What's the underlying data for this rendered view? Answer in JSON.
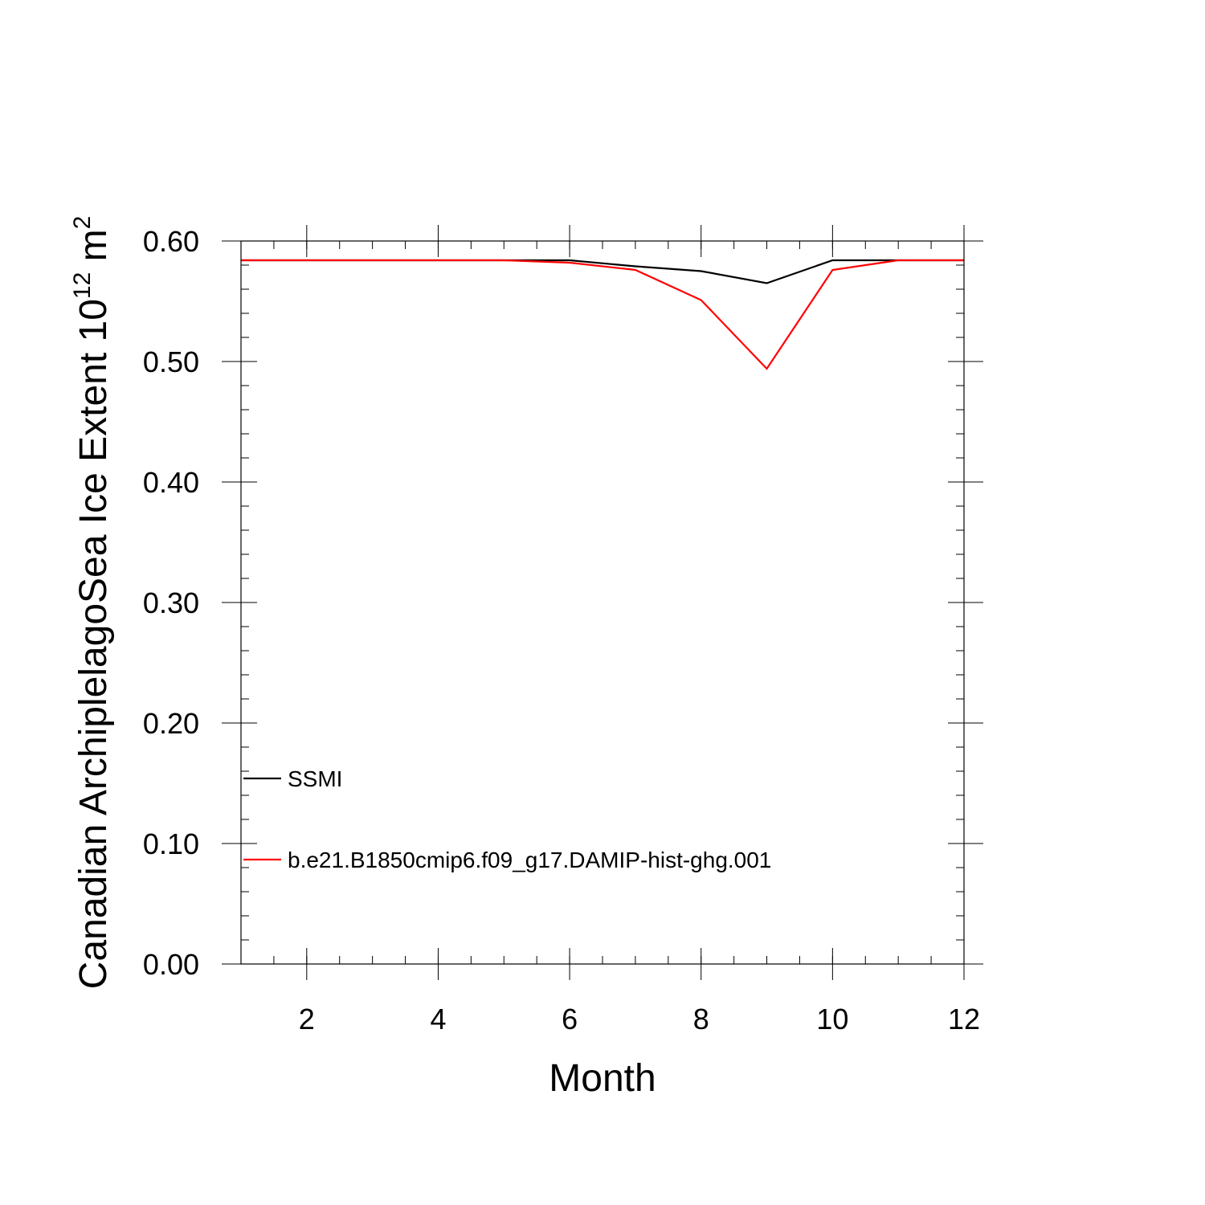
{
  "chart_data": {
    "type": "line",
    "title": "",
    "xlabel": "Month",
    "ylabel": "Canadian ArchiplelagoSea Ice Extent 10",
    "ylabel_exponent": "12",
    "ylabel_unit": " m",
    "ylabel_unit_exponent": "2",
    "xlim": [
      1,
      12
    ],
    "ylim": [
      0.0,
      0.6
    ],
    "x_ticks": [
      2,
      4,
      6,
      8,
      10,
      12
    ],
    "x_tick_labels": [
      "2",
      "4",
      "6",
      "8",
      "10",
      "12"
    ],
    "y_ticks": [
      0.0,
      0.1,
      0.2,
      0.3,
      0.4,
      0.5,
      0.6
    ],
    "y_tick_labels": [
      "0.00",
      "0.10",
      "0.20",
      "0.30",
      "0.40",
      "0.50",
      "0.60"
    ],
    "grid": false,
    "legend_position": "bottom-left",
    "x": [
      1,
      2,
      3,
      4,
      5,
      6,
      7,
      8,
      9,
      10,
      11,
      12
    ],
    "series": [
      {
        "name": "SSMI",
        "color": "#000000",
        "values": [
          0.584,
          0.584,
          0.584,
          0.584,
          0.584,
          0.584,
          0.579,
          0.575,
          0.565,
          0.584,
          0.584,
          0.584
        ]
      },
      {
        "name": "b.e21.B1850cmip6.f09_g17.DAMIP-hist-ghg.001",
        "color": "#ff0000",
        "values": [
          0.584,
          0.584,
          0.584,
          0.584,
          0.584,
          0.582,
          0.576,
          0.551,
          0.494,
          0.576,
          0.584,
          0.584
        ]
      }
    ]
  }
}
